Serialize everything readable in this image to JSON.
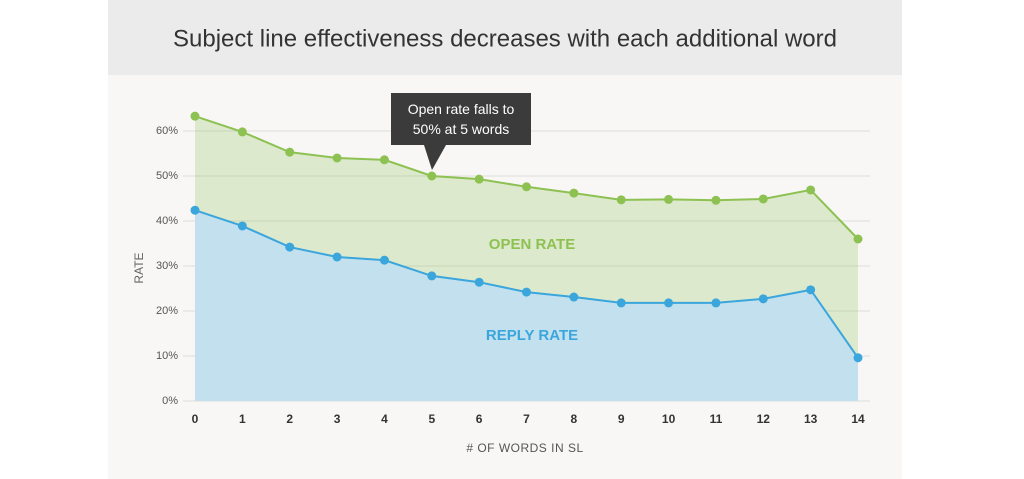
{
  "chart_data": {
    "type": "area",
    "title": "Subject line effectiveness decreases with each additional word",
    "annotation": "Open rate falls to 50% at 5 words",
    "x_label": "# OF WORDS IN SL",
    "y_label": "RATE",
    "x": [
      0,
      1,
      2,
      3,
      4,
      5,
      6,
      7,
      8,
      9,
      10,
      11,
      12,
      13,
      14
    ],
    "xlim": [
      0,
      14
    ],
    "xticks": [
      0,
      1,
      2,
      3,
      4,
      5,
      6,
      7,
      8,
      9,
      10,
      11,
      12,
      13,
      14
    ],
    "ylim": [
      0,
      60
    ],
    "yticks": [
      {
        "value": 0,
        "label": "0%"
      },
      {
        "value": 10,
        "label": "10%"
      },
      {
        "value": 20,
        "label": "20%"
      },
      {
        "value": 30,
        "label": "30%"
      },
      {
        "value": 40,
        "label": "40%"
      },
      {
        "value": 50,
        "label": "50%"
      },
      {
        "value": 60,
        "label": "60%"
      }
    ],
    "grid": true,
    "series": [
      {
        "name": "OPEN RATE",
        "color": "#8dc152",
        "values": [
          63.3,
          59.8,
          55.3,
          54,
          53.6,
          50,
          49.3,
          47.6,
          46.2,
          44.7,
          44.8,
          44.6,
          44.9,
          46.9,
          36
        ]
      },
      {
        "name": "REPLY RATE",
        "color": "#3aa6dc",
        "values": [
          42.4,
          38.9,
          34.2,
          32,
          31.3,
          27.8,
          26.4,
          24.2,
          23.1,
          21.8,
          21.8,
          21.8,
          22.7,
          24.7,
          9.6
        ]
      }
    ]
  }
}
